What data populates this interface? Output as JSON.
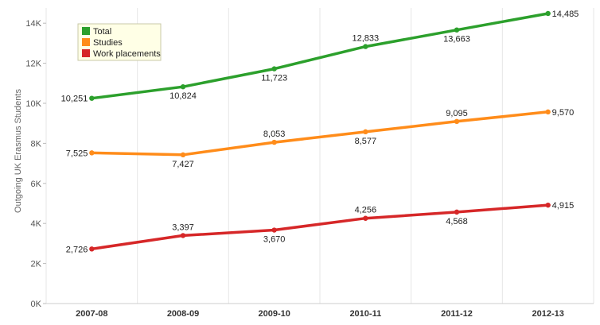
{
  "chart_data": {
    "type": "line",
    "title": "",
    "xlabel": "",
    "ylabel": "Outgoing UK Erasmus Students",
    "categories": [
      "2007-08",
      "2008-09",
      "2009-10",
      "2010-11",
      "2011-12",
      "2012-13"
    ],
    "ylim": [
      0,
      14800
    ],
    "yticks": [
      0,
      2000,
      4000,
      6000,
      8000,
      10000,
      12000,
      14000
    ],
    "ytick_labels": [
      "0K",
      "2K",
      "4K",
      "6K",
      "8K",
      "10K",
      "12K",
      "14K"
    ],
    "grid": "vertical",
    "legend_position": "top-left",
    "series": [
      {
        "name": "Total",
        "color": "#2ca02c",
        "values": [
          10251,
          10824,
          11723,
          12833,
          13663,
          14485
        ],
        "labels": [
          "10,251",
          "10,824",
          "11,723",
          "12,833",
          "13,663",
          "14,485"
        ]
      },
      {
        "name": "Studies",
        "color": "#ff8c1a",
        "values": [
          7525,
          7427,
          8053,
          8577,
          9095,
          9570
        ],
        "labels": [
          "7,525",
          "7,427",
          "8,053",
          "8,577",
          "9,095",
          "9,570"
        ]
      },
      {
        "name": "Work placements",
        "color": "#d62728",
        "values": [
          2726,
          3397,
          3670,
          4256,
          4568,
          4915
        ],
        "labels": [
          "2,726",
          "3,397",
          "3,670",
          "4,256",
          "4,568",
          "4,915"
        ]
      }
    ]
  }
}
